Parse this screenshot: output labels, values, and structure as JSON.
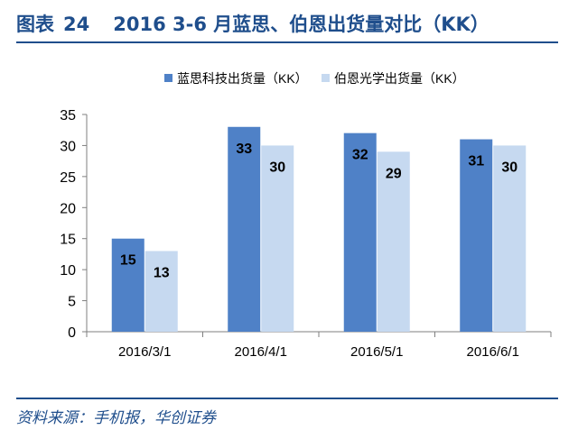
{
  "header": {
    "figure_label": "图表",
    "figure_number": "24",
    "title": "2016 3-6 月蓝思、伯恩出货量对比（KK）"
  },
  "footer": {
    "source": "资料来源：手机报，华创证券"
  },
  "chart_data": {
    "type": "bar",
    "categories": [
      "2016/3/1",
      "2016/4/1",
      "2016/5/1",
      "2016/6/1"
    ],
    "series": [
      {
        "name": "蓝思科技出货量（KK）",
        "values": [
          15,
          33,
          32,
          31
        ],
        "color": "#4f81c7"
      },
      {
        "name": "伯恩光学出货量（KK）",
        "values": [
          13,
          30,
          29,
          30
        ],
        "color": "#c6d9f0"
      }
    ],
    "ylim": [
      0,
      35
    ],
    "yticks": [
      0,
      5,
      10,
      15,
      20,
      25,
      30,
      35
    ],
    "xlabel": "",
    "ylabel": "",
    "grid": false,
    "legend_position": "top",
    "data_labels": true
  }
}
